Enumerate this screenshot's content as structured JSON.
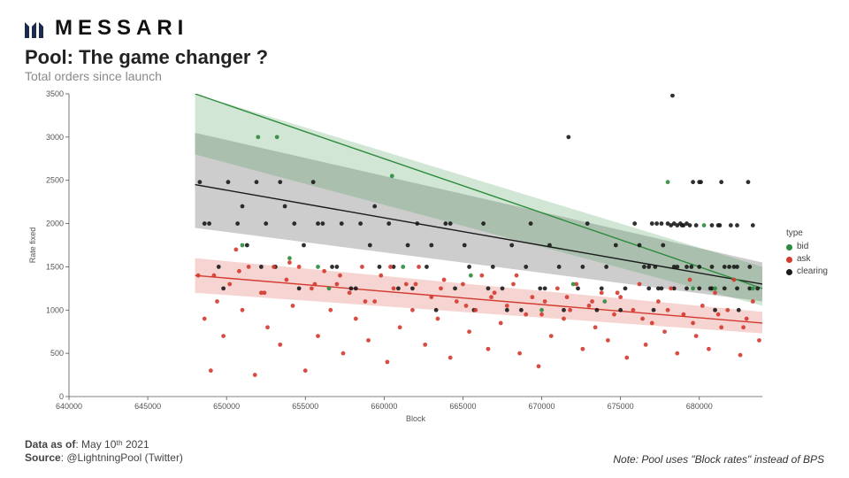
{
  "brand": {
    "name": "MESSARI",
    "logo_color": "#1b2a4e"
  },
  "header": {
    "title": "Pool: The game changer ?",
    "subtitle": "Total orders since launch"
  },
  "footer": {
    "data_as_of_label": "Data as of",
    "data_as_of_value": "May 10ᵗʰ 2021",
    "source_label": "Source",
    "source_value": "@LightningPool (Twitter)",
    "note": "Note: Pool uses \"Block rates\" instead of BPS"
  },
  "legend": {
    "title": "type",
    "items": [
      {
        "key": "bid",
        "label": "bid",
        "color": "#2e8b3d"
      },
      {
        "key": "ask",
        "label": "ask",
        "color": "#d43a2f"
      },
      {
        "key": "clearing",
        "label": "clearing",
        "color": "#1a1a1a"
      }
    ]
  },
  "chart": {
    "type": "scatter_with_regression_bands",
    "background_color": "#ffffff",
    "grid_color": "#d9d9d9",
    "axis_color": "#555555",
    "tick_fontsize": 9,
    "label_fontsize": 9,
    "xlabel": "Block",
    "ylabel": "Rate fixed",
    "xlim": [
      640000,
      684000
    ],
    "ylim": [
      0,
      3500
    ],
    "xtick_step": 5000,
    "ytick_step": 500,
    "marker_radius": 2.4,
    "marker_opacity": 0.9,
    "line_width": 1.4,
    "band_opacity": 0.22,
    "series": {
      "bid": {
        "color": "#2e8b3d",
        "regression": {
          "x0": 648000,
          "y0": 3500,
          "x1": 684000,
          "y1": 1250
        },
        "band": {
          "x0": 648000,
          "y0_top": 3500,
          "y0_bot": 2800,
          "x1": 684000,
          "y1_top": 1500,
          "y1_bot": 1050
        },
        "points": [
          [
            651000,
            1750
          ],
          [
            652000,
            3000
          ],
          [
            653200,
            3000
          ],
          [
            654000,
            1600
          ],
          [
            655800,
            1500
          ],
          [
            656500,
            1250
          ],
          [
            660500,
            2550
          ],
          [
            661200,
            1500
          ],
          [
            665500,
            1400
          ],
          [
            670000,
            1000
          ],
          [
            672000,
            1300
          ],
          [
            674000,
            1100
          ],
          [
            678000,
            2480
          ],
          [
            679600,
            1250
          ],
          [
            680300,
            1980
          ],
          [
            681000,
            1250
          ],
          [
            683400,
            1250
          ]
        ]
      },
      "ask": {
        "color": "#d43a2f",
        "regression": {
          "x0": 648000,
          "y0": 1400,
          "x1": 684000,
          "y1": 850
        },
        "band": {
          "x0": 648000,
          "y0_top": 1600,
          "y0_bot": 1200,
          "x1": 684000,
          "y1_top": 980,
          "y1_bot": 730
        },
        "points": [
          [
            648200,
            1400
          ],
          [
            648600,
            900
          ],
          [
            649000,
            300
          ],
          [
            649400,
            1100
          ],
          [
            649800,
            700
          ],
          [
            650200,
            1300
          ],
          [
            650600,
            1700
          ],
          [
            651000,
            1000
          ],
          [
            651400,
            1500
          ],
          [
            651800,
            250
          ],
          [
            652200,
            1200
          ],
          [
            652600,
            800
          ],
          [
            653000,
            1500
          ],
          [
            653400,
            600
          ],
          [
            653800,
            1350
          ],
          [
            654200,
            1050
          ],
          [
            654600,
            1500
          ],
          [
            655000,
            300
          ],
          [
            655400,
            1250
          ],
          [
            655800,
            700
          ],
          [
            656200,
            1450
          ],
          [
            656600,
            1000
          ],
          [
            657000,
            1300
          ],
          [
            657400,
            500
          ],
          [
            657800,
            1200
          ],
          [
            658200,
            900
          ],
          [
            658600,
            1500
          ],
          [
            659000,
            650
          ],
          [
            659400,
            1100
          ],
          [
            659800,
            1400
          ],
          [
            660200,
            400
          ],
          [
            660600,
            1250
          ],
          [
            661000,
            800
          ],
          [
            661400,
            1300
          ],
          [
            661800,
            1000
          ],
          [
            662200,
            1500
          ],
          [
            662600,
            600
          ],
          [
            663000,
            1150
          ],
          [
            663400,
            900
          ],
          [
            663800,
            1350
          ],
          [
            664200,
            450
          ],
          [
            664600,
            1100
          ],
          [
            665000,
            1300
          ],
          [
            665400,
            750
          ],
          [
            665800,
            1000
          ],
          [
            666200,
            1400
          ],
          [
            666600,
            550
          ],
          [
            667000,
            1200
          ],
          [
            667400,
            850
          ],
          [
            667800,
            1050
          ],
          [
            668200,
            1300
          ],
          [
            668600,
            500
          ],
          [
            669000,
            950
          ],
          [
            669400,
            1150
          ],
          [
            669800,
            350
          ],
          [
            670200,
            1100
          ],
          [
            670600,
            700
          ],
          [
            671000,
            1250
          ],
          [
            671400,
            900
          ],
          [
            671800,
            1000
          ],
          [
            672200,
            1300
          ],
          [
            672600,
            550
          ],
          [
            673000,
            1050
          ],
          [
            673400,
            800
          ],
          [
            673800,
            1200
          ],
          [
            674200,
            650
          ],
          [
            674600,
            950
          ],
          [
            675000,
            1150
          ],
          [
            675400,
            450
          ],
          [
            675800,
            1000
          ],
          [
            676200,
            1300
          ],
          [
            676600,
            600
          ],
          [
            677000,
            850
          ],
          [
            677400,
            1100
          ],
          [
            677800,
            750
          ],
          [
            678200,
            1250
          ],
          [
            678600,
            500
          ],
          [
            679000,
            950
          ],
          [
            679400,
            1350
          ],
          [
            679800,
            700
          ],
          [
            680200,
            1050
          ],
          [
            680600,
            550
          ],
          [
            681000,
            1200
          ],
          [
            681400,
            800
          ],
          [
            681800,
            1000
          ],
          [
            682200,
            1350
          ],
          [
            682600,
            480
          ],
          [
            683000,
            900
          ],
          [
            683400,
            1100
          ],
          [
            683800,
            650
          ],
          [
            649200,
            1400
          ],
          [
            650800,
            1450
          ],
          [
            652400,
            1200
          ],
          [
            654000,
            1550
          ],
          [
            655600,
            1300
          ],
          [
            657200,
            1400
          ],
          [
            658800,
            1100
          ],
          [
            660400,
            1500
          ],
          [
            662000,
            1300
          ],
          [
            663600,
            1250
          ],
          [
            665200,
            1050
          ],
          [
            666800,
            1150
          ],
          [
            668400,
            1400
          ],
          [
            670000,
            950
          ],
          [
            671600,
            1150
          ],
          [
            673200,
            1100
          ],
          [
            674800,
            1200
          ],
          [
            676400,
            900
          ],
          [
            678000,
            1000
          ],
          [
            679600,
            850
          ],
          [
            681200,
            950
          ],
          [
            682800,
            800
          ]
        ]
      },
      "clearing": {
        "color": "#1a1a1a",
        "regression": {
          "x0": 648000,
          "y0": 2450,
          "x1": 684000,
          "y1": 1300
        },
        "band": {
          "x0": 648000,
          "y0_top": 3050,
          "y0_bot": 1950,
          "x1": 684000,
          "y1_top": 1550,
          "y1_bot": 1100
        },
        "points": [
          [
            648300,
            2480
          ],
          [
            648900,
            2000
          ],
          [
            649500,
            1500
          ],
          [
            650100,
            2480
          ],
          [
            650700,
            2000
          ],
          [
            651300,
            1750
          ],
          [
            651900,
            2480
          ],
          [
            652500,
            2000
          ],
          [
            653100,
            1500
          ],
          [
            653700,
            2200
          ],
          [
            654300,
            2000
          ],
          [
            654900,
            1750
          ],
          [
            655500,
            2480
          ],
          [
            656100,
            2000
          ],
          [
            656700,
            1500
          ],
          [
            657300,
            2000
          ],
          [
            657900,
            1250
          ],
          [
            658500,
            2000
          ],
          [
            659100,
            1750
          ],
          [
            659700,
            1500
          ],
          [
            660300,
            2000
          ],
          [
            660900,
            1250
          ],
          [
            661500,
            1750
          ],
          [
            662100,
            2000
          ],
          [
            662700,
            1500
          ],
          [
            663300,
            1000
          ],
          [
            663900,
            2000
          ],
          [
            664500,
            1250
          ],
          [
            665100,
            1750
          ],
          [
            665700,
            1000
          ],
          [
            666300,
            2000
          ],
          [
            666900,
            1500
          ],
          [
            667500,
            1250
          ],
          [
            668100,
            1750
          ],
          [
            668700,
            1000
          ],
          [
            669300,
            2000
          ],
          [
            669900,
            1250
          ],
          [
            670500,
            1750
          ],
          [
            671100,
            1500
          ],
          [
            671700,
            3000
          ],
          [
            672300,
            1250
          ],
          [
            672900,
            2000
          ],
          [
            673500,
            1000
          ],
          [
            674100,
            1500
          ],
          [
            674700,
            1750
          ],
          [
            675300,
            1250
          ],
          [
            675900,
            2000
          ],
          [
            676500,
            1500
          ],
          [
            677100,
            1000
          ],
          [
            677700,
            1750
          ],
          [
            678300,
            3480
          ],
          [
            678900,
            1980
          ],
          [
            679500,
            1500
          ],
          [
            680100,
            2480
          ],
          [
            680700,
            1250
          ],
          [
            681300,
            1980
          ],
          [
            681900,
            1500
          ],
          [
            682500,
            1000
          ],
          [
            683100,
            2480
          ],
          [
            683700,
            1250
          ],
          [
            648600,
            2000
          ],
          [
            649800,
            1250
          ],
          [
            651000,
            2200
          ],
          [
            652200,
            1500
          ],
          [
            653400,
            2480
          ],
          [
            654600,
            1250
          ],
          [
            655800,
            2000
          ],
          [
            657000,
            1500
          ],
          [
            658200,
            1250
          ],
          [
            659400,
            2200
          ],
          [
            660600,
            1500
          ],
          [
            661800,
            1250
          ],
          [
            663000,
            1750
          ],
          [
            664200,
            2000
          ],
          [
            665400,
            1500
          ],
          [
            666600,
            1250
          ],
          [
            667800,
            1000
          ],
          [
            669000,
            1500
          ],
          [
            670200,
            1250
          ],
          [
            671400,
            1000
          ],
          [
            672600,
            1500
          ],
          [
            673800,
            1250
          ],
          [
            675000,
            1000
          ],
          [
            676200,
            1750
          ],
          [
            677400,
            1250
          ],
          [
            678600,
            1500
          ],
          [
            679800,
            1980
          ],
          [
            681000,
            1000
          ],
          [
            682200,
            1500
          ],
          [
            683400,
            1980
          ],
          [
            677000,
            2000
          ],
          [
            677300,
            2000
          ],
          [
            677600,
            2000
          ],
          [
            678000,
            2000
          ],
          [
            678400,
            2000
          ],
          [
            678800,
            2000
          ],
          [
            679200,
            2000
          ],
          [
            679600,
            2480
          ],
          [
            680000,
            2480
          ],
          [
            681400,
            2480
          ],
          [
            678200,
            1980
          ],
          [
            678600,
            1980
          ],
          [
            679000,
            1980
          ],
          [
            679400,
            1980
          ],
          [
            680800,
            1980
          ],
          [
            681200,
            1980
          ],
          [
            682000,
            1980
          ],
          [
            682400,
            1980
          ],
          [
            676800,
            1500
          ],
          [
            677200,
            1500
          ],
          [
            678400,
            1500
          ],
          [
            679200,
            1500
          ],
          [
            680000,
            1500
          ],
          [
            680800,
            1500
          ],
          [
            681600,
            1500
          ],
          [
            682400,
            1500
          ],
          [
            683200,
            1500
          ],
          [
            676800,
            1250
          ],
          [
            677600,
            1250
          ],
          [
            678400,
            1250
          ],
          [
            679200,
            1250
          ],
          [
            680000,
            1250
          ],
          [
            680800,
            1250
          ],
          [
            681600,
            1250
          ],
          [
            682400,
            1250
          ],
          [
            683200,
            1250
          ]
        ]
      }
    }
  }
}
